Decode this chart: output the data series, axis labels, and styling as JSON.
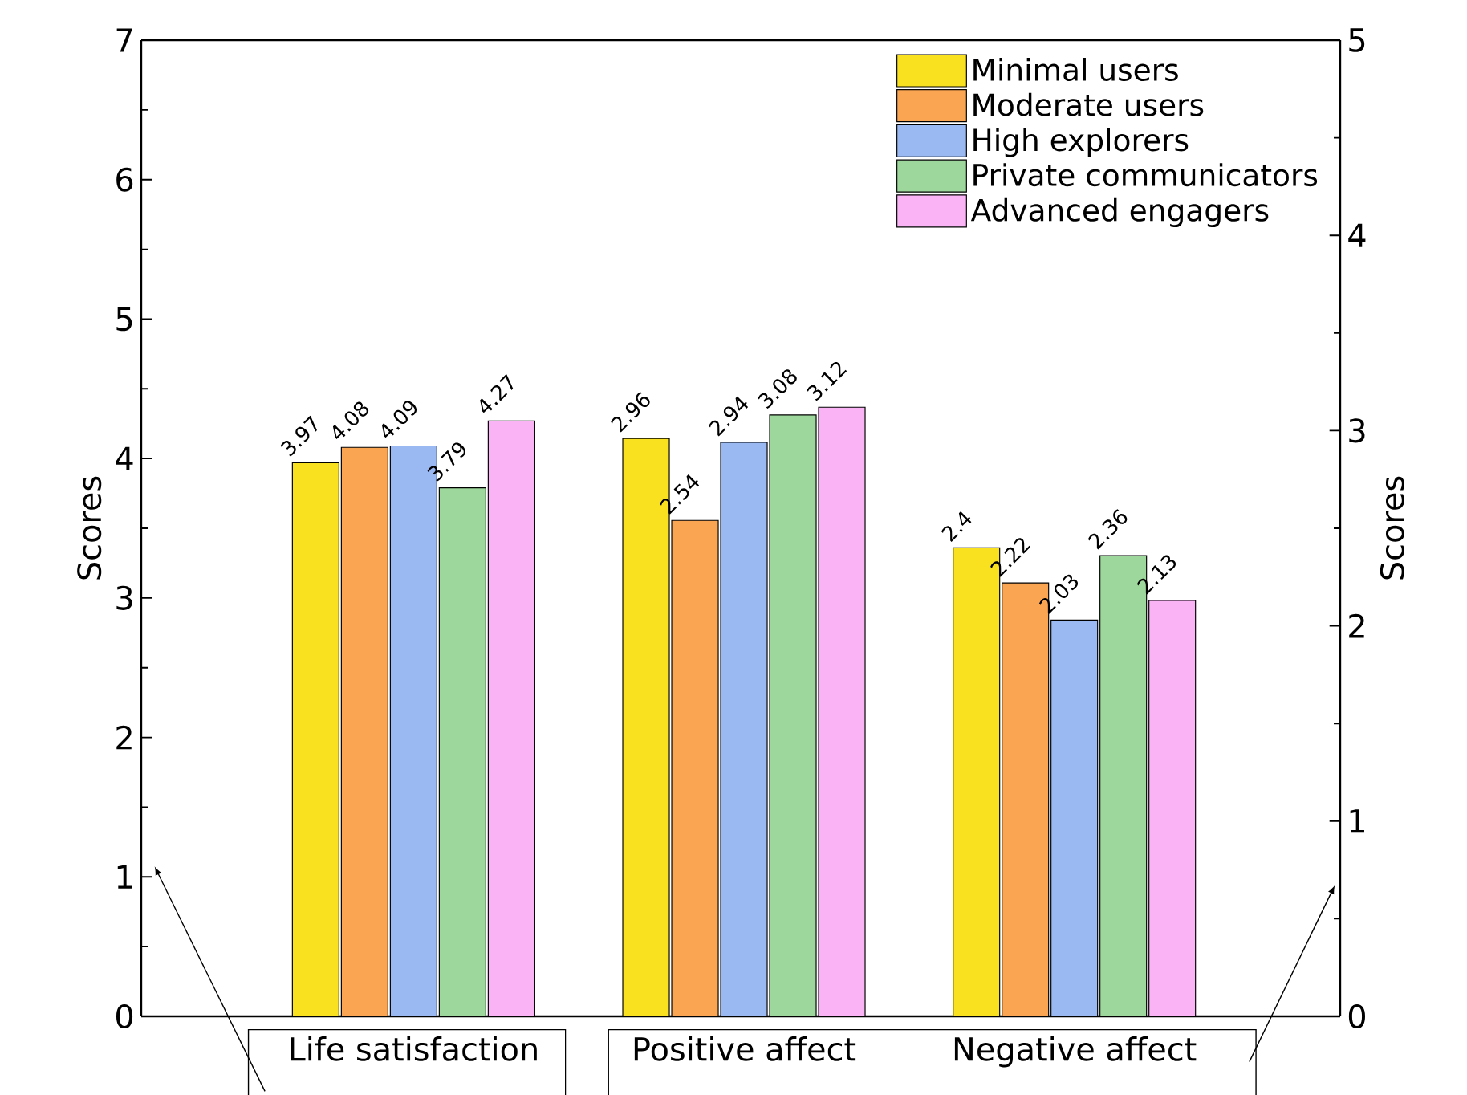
{
  "chart_data": {
    "type": "bar",
    "categories": [
      "Life satisfaction",
      "Positive affect",
      "Negative affect"
    ],
    "ylabel": "Scores",
    "y2label": "Scores",
    "ylim": [
      0,
      7
    ],
    "yticks": [
      0,
      1,
      2,
      3,
      4,
      5,
      6,
      7
    ],
    "y2lim": [
      0,
      5
    ],
    "y2ticks": [
      0,
      1,
      2,
      3,
      4,
      5
    ],
    "legend": "top right",
    "data_labels": true,
    "series": [
      {
        "name": "Minimal users",
        "color": "#f9e11f",
        "values": [
          3.97,
          null,
          null
        ]
      },
      {
        "name": "Moderate users",
        "color": "#f9a552",
        "values": [
          4.08,
          null,
          null
        ]
      },
      {
        "name": "High explorers",
        "color": "#9ab9f2",
        "values": [
          4.09,
          null,
          null
        ]
      },
      {
        "name": "Private communicators",
        "color": "#9ed79b",
        "values": [
          3.79,
          null,
          null
        ]
      },
      {
        "name": "Advanced engagers",
        "color": "#fab4f6",
        "values": [
          4.27,
          null,
          null
        ]
      },
      {
        "color": "#f9e11f",
        "axis": "y2",
        "values": [
          null,
          2.96,
          2.4
        ]
      },
      {
        "color": "#f9a552",
        "axis": "y2",
        "values": [
          null,
          2.54,
          2.22
        ]
      },
      {
        "color": "#9ab9f2",
        "axis": "y2",
        "values": [
          null,
          2.94,
          2.03
        ]
      },
      {
        "color": "#9ed79b",
        "axis": "y2",
        "values": [
          null,
          3.08,
          2.36
        ]
      },
      {
        "color": "#fab4f6",
        "axis": "y2",
        "values": [
          null,
          3.12,
          2.13
        ]
      }
    ]
  }
}
